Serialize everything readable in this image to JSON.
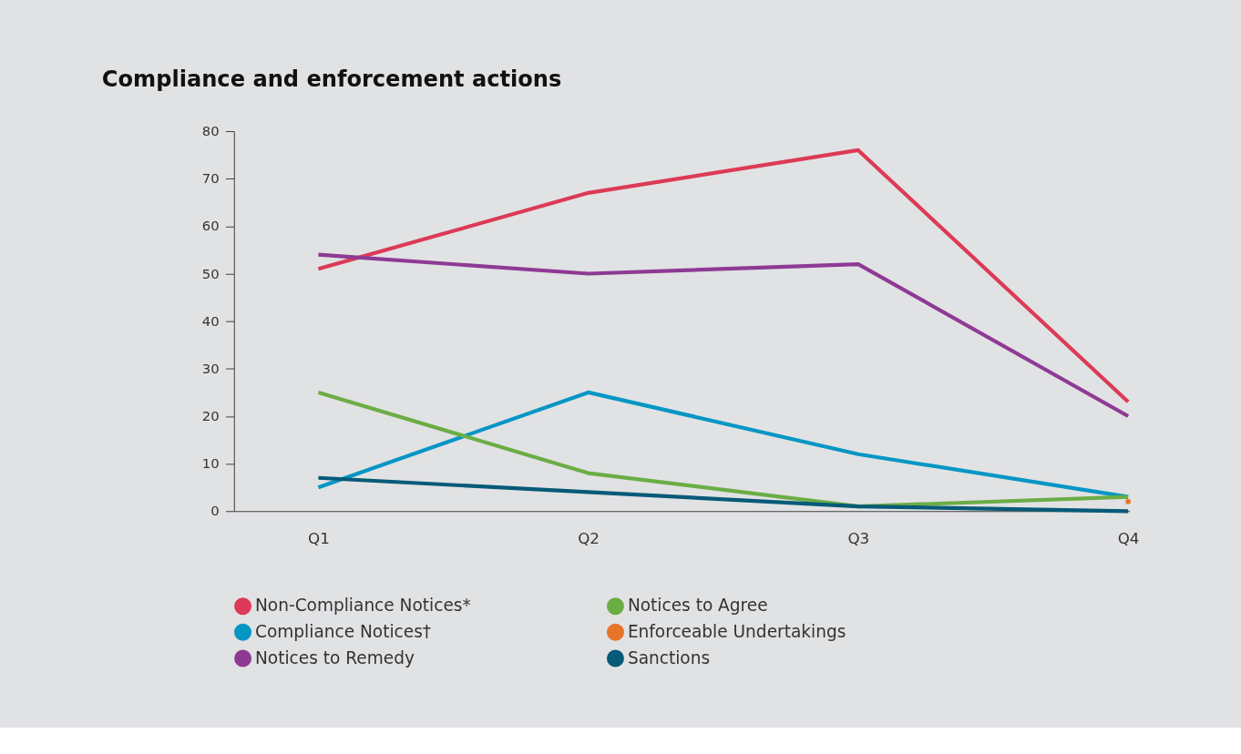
{
  "chart_data": {
    "type": "line",
    "title": "Compliance and enforcement actions",
    "categories": [
      "Q1",
      "Q2",
      "Q3",
      "Q4"
    ],
    "series": [
      {
        "name": "Non-Compliance Notices*",
        "color": "#dc3a56",
        "values": [
          51,
          67,
          76,
          23
        ]
      },
      {
        "name": "Compliance Notices†",
        "color": "#0596c4",
        "values": [
          5,
          25,
          12,
          3
        ]
      },
      {
        "name": "Notices to Remedy",
        "color": "#8e3a94",
        "values": [
          54,
          50,
          52,
          20
        ]
      },
      {
        "name": "Notices to Agree",
        "color": "#6bad45",
        "values": [
          25,
          8,
          1,
          3
        ]
      },
      {
        "name": "Enforceable Undertakings",
        "type": "scatter",
        "color": "#e8742a",
        "values": [
          null,
          null,
          null,
          2
        ]
      },
      {
        "name": "Sanctions",
        "color": "#075a78",
        "values": [
          7,
          4,
          1,
          0
        ]
      }
    ],
    "ylim": [
      0,
      80
    ],
    "yticks": [
      0,
      10,
      20,
      30,
      40,
      50,
      60,
      70,
      80
    ],
    "grid": false,
    "legend": "bottom",
    "marker": "none",
    "line_style": "solid"
  }
}
